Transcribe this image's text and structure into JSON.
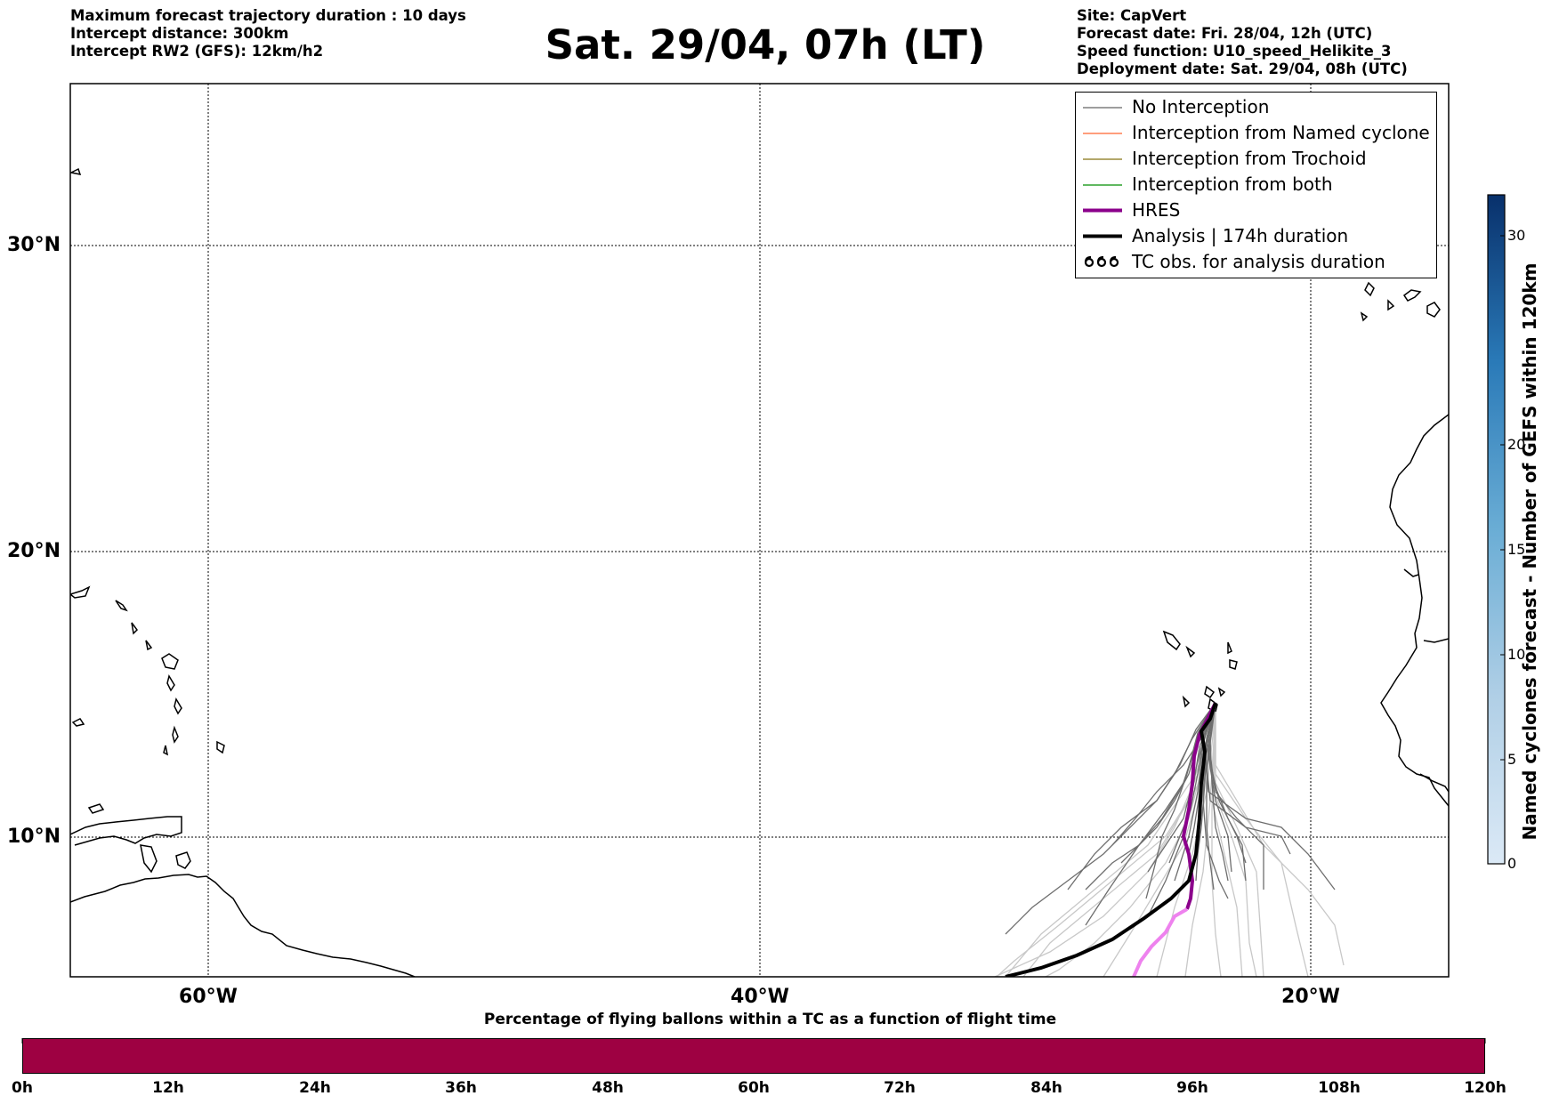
{
  "header": {
    "left_lines": [
      "Maximum forecast trajectory duration : 10 days",
      "Intercept distance: 300km",
      "Intercept RW2 (GFS):  12km/h2"
    ],
    "title": "Sat. 29/04, 07h (LT)",
    "right_lines": [
      "Site: CapVert",
      "Forecast date: Fri. 28/04, 12h (UTC)",
      "Speed function: U10_speed_Helikite_3",
      "Deployment date: Sat. 29/04, 08h (UTC)"
    ]
  },
  "map": {
    "lat_labels": [
      "30°N",
      "20°N",
      "10°N"
    ],
    "lon_labels": [
      "60°W",
      "40°W",
      "20°W"
    ]
  },
  "legend": {
    "items": [
      {
        "label": "No Interception",
        "color": "#7f7f7f"
      },
      {
        "label": "Interception from Named cyclone",
        "color": "#ff7f50"
      },
      {
        "label": "Interception from Trochoid",
        "color": "#9a8a3a"
      },
      {
        "label": "Interception from both",
        "color": "#2ca02c"
      },
      {
        "label": "HRES",
        "color": "#8b008b"
      },
      {
        "label": "Analysis | 174h duration",
        "color": "#000000"
      },
      {
        "label": "TC obs. for analysis duration",
        "icon": "tc-symbol-icon"
      }
    ]
  },
  "colorbar": {
    "title": "Named cyclones forecast - Number of GEFS within 120km",
    "ticks": [
      "30",
      "20",
      "15",
      "10",
      "5",
      "0"
    ]
  },
  "bottom_bar": {
    "title": "Percentage of flying ballons within a TC as a function of flight time",
    "color": "#9e0142",
    "ticks": [
      "0h",
      "12h",
      "24h",
      "36h",
      "48h",
      "60h",
      "72h",
      "84h",
      "96h",
      "108h",
      "120h"
    ]
  }
}
